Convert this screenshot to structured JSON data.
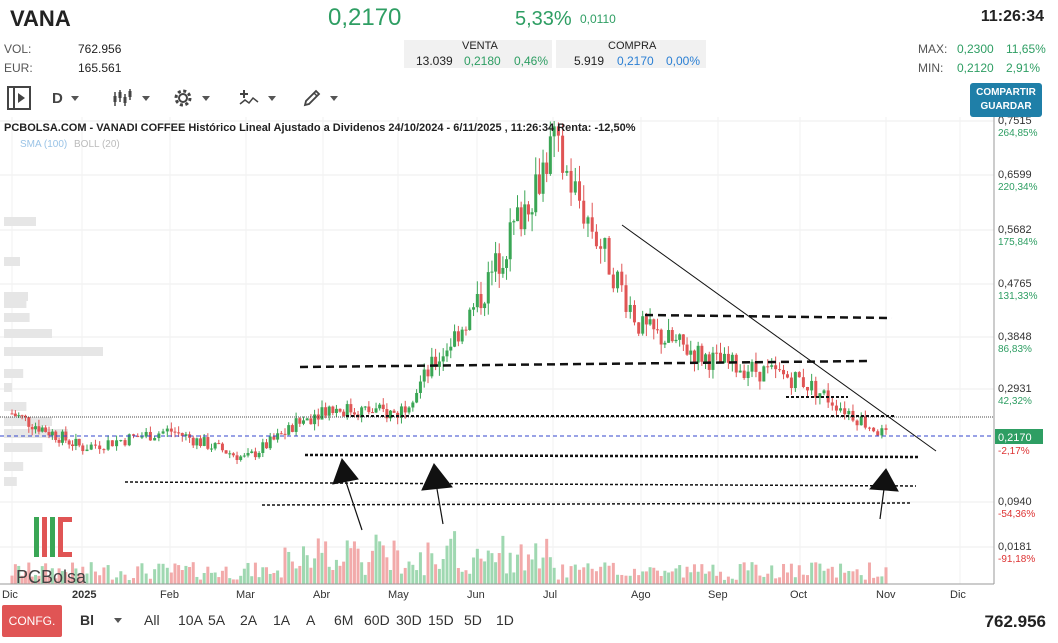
{
  "header": {
    "ticker": "VANA",
    "price": "0,2170",
    "change_pct": "5,33%",
    "change_abs": "0,0110",
    "time": "11:26:34",
    "vol_label": "VOL:",
    "vol_value": "762.956",
    "eur_label": "EUR:",
    "eur_value": "165.561",
    "venta_label": "VENTA",
    "venta_qty": "13.039",
    "venta_price": "0,2180",
    "venta_pct": "0,46%",
    "compra_label": "COMPRA",
    "compra_qty": "5.919",
    "compra_price": "0,2170",
    "compra_pct": "0,00%",
    "max_label": "MAX:",
    "max_value": "0,2300",
    "max_pct": "11,65%",
    "min_label": "MIN:",
    "min_value": "0,2120",
    "min_pct": "2,91%"
  },
  "toolbar": {
    "period": "D",
    "share_line1": "COMPARTIR",
    "share_line2": "GUARDAR",
    "icons": [
      "play-panel-icon",
      "candles-icon",
      "gear-icon",
      "indicator-icon",
      "pencil-icon"
    ]
  },
  "chart_data": {
    "type": "candlestick",
    "title": "PCBOLSA.COM - VANADI COFFEE Histórico Lineal Ajustado a Dividenos 24/10/2024 - 6/11/2025 , 11:26:34 Renta: -12,50%",
    "legend": [
      "SMA (100)",
      "BOLL (20)"
    ],
    "watermark": "PCBolsa",
    "x_ticks": [
      "Dic",
      "2025",
      "Feb",
      "Mar",
      "Abr",
      "May",
      "Jun",
      "Jul",
      "Ago",
      "Sep",
      "Oct",
      "Nov",
      "Dic"
    ],
    "y_ticks": [
      {
        "price": "0,7515",
        "pct": "264,85%",
        "pct_color": "green"
      },
      {
        "price": "0,6599",
        "pct": "220,34%",
        "pct_color": "green"
      },
      {
        "price": "0,5682",
        "pct": "175,84%",
        "pct_color": "green"
      },
      {
        "price": "0,4765",
        "pct": "131,33%",
        "pct_color": "green"
      },
      {
        "price": "0,3848",
        "pct": "86,83%",
        "pct_color": "green"
      },
      {
        "price": "0,2931",
        "pct": "42,32%",
        "pct_color": "green"
      },
      {
        "price": "0,0940",
        "pct": "-54,36%",
        "pct_color": "red"
      },
      {
        "price": "0,0181",
        "pct": "-91,18%",
        "pct_color": "red"
      }
    ],
    "current_price_tag": "0,2170",
    "current_pct_tag": "-2,17%",
    "close_series": [
      {
        "x": "Dic",
        "y": 0.25
      },
      {
        "x": "2025",
        "y": 0.19
      },
      {
        "x": "Feb",
        "y": 0.22
      },
      {
        "x": "Mar",
        "y": 0.17
      },
      {
        "x": "Abr",
        "y": 0.26
      },
      {
        "x": "May",
        "y": 0.25
      },
      {
        "x": "Jun",
        "y": 0.44
      },
      {
        "x": "Jul",
        "y": 0.71
      },
      {
        "x": "Ago",
        "y": 0.4
      },
      {
        "x": "Sep",
        "y": 0.34
      },
      {
        "x": "Oct",
        "y": 0.31
      },
      {
        "x": "Nov",
        "y": 0.21
      }
    ]
  },
  "bottom": {
    "config": "CONFG.",
    "type": "Bl",
    "ranges": [
      "All",
      "10A",
      "5A",
      "2A",
      "1A",
      "A",
      "6M",
      "60D",
      "30D",
      "15D",
      "5D",
      "1D"
    ],
    "volume": "762.956"
  }
}
